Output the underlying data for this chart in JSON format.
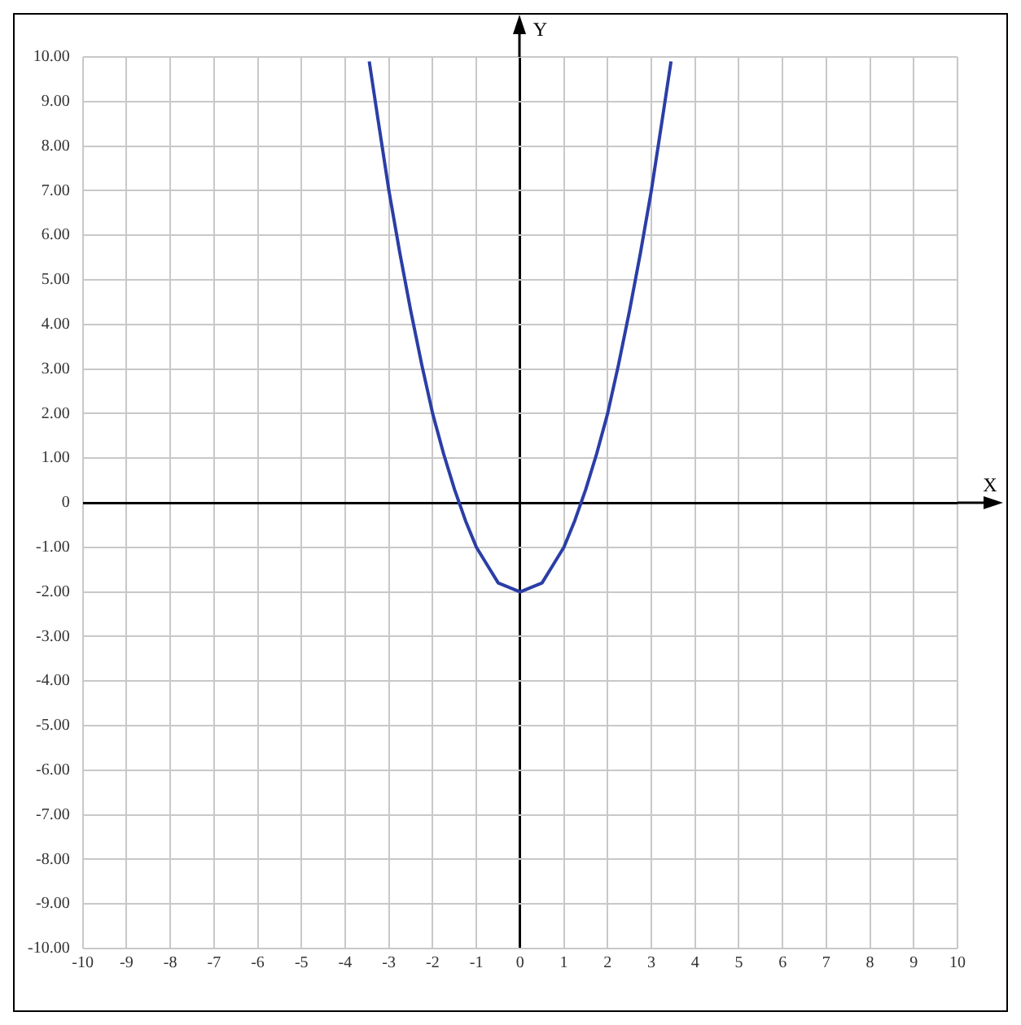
{
  "chart_data": {
    "type": "line",
    "xlabel": "X",
    "ylabel": "Y",
    "series": [
      {
        "color": "#2b3ea6",
        "x": [
          -3.45,
          -3.25,
          -3,
          -2.75,
          -2.5,
          -2.25,
          -2,
          -1.75,
          -1.5,
          -1.25,
          -1,
          -0.75,
          -0.5,
          -0.25,
          0,
          0.25,
          0.5,
          0.75,
          1,
          1.25,
          1.5,
          1.75,
          2,
          2.25,
          2.5,
          2.75,
          3,
          3.25,
          3.45
        ],
        "values": [
          9.9,
          8.6,
          7.0,
          5.6,
          4.3,
          3.1,
          2.0,
          1.1,
          0.3,
          -0.4,
          -1.0,
          -1.4,
          -1.8,
          -1.9,
          -2.0,
          -1.9,
          -1.8,
          -1.4,
          -1.0,
          -0.4,
          0.3,
          1.1,
          2.0,
          3.1,
          4.3,
          5.6,
          7.0,
          8.6,
          9.9
        ]
      }
    ],
    "xlim": [
      -10,
      10
    ],
    "ylim": [
      -10,
      10
    ],
    "xticks": [
      -10,
      -9,
      -8,
      -7,
      -6,
      -5,
      -4,
      -3,
      -2,
      -1,
      0,
      1,
      2,
      3,
      4,
      5,
      6,
      7,
      8,
      9,
      10
    ],
    "yticks": [
      {
        "value": 10,
        "label": "10.00"
      },
      {
        "value": 9,
        "label": "9.00"
      },
      {
        "value": 8,
        "label": "8.00"
      },
      {
        "value": 7,
        "label": "7.00"
      },
      {
        "value": 6,
        "label": "6.00"
      },
      {
        "value": 5,
        "label": "5.00"
      },
      {
        "value": 4,
        "label": "4.00"
      },
      {
        "value": 3,
        "label": "3.00"
      },
      {
        "value": 2,
        "label": "2.00"
      },
      {
        "value": 1,
        "label": "1.00"
      },
      0,
      {
        "value": -1,
        "label": "-1.00"
      },
      {
        "value": -2,
        "label": "-2.00"
      },
      {
        "value": -3,
        "label": "-3.00"
      },
      {
        "value": -4,
        "label": "-4.00"
      },
      {
        "value": -5,
        "label": "-5.00"
      },
      {
        "value": -6,
        "label": "-6.00"
      },
      {
        "value": -7,
        "label": "-7.00"
      },
      {
        "value": -8,
        "label": "-8.00"
      },
      {
        "value": -9,
        "label": "-9.00"
      },
      {
        "value": -10,
        "label": "-10.00"
      }
    ],
    "grid": true,
    "legend": false,
    "marker": "none",
    "line_style": "solid"
  }
}
